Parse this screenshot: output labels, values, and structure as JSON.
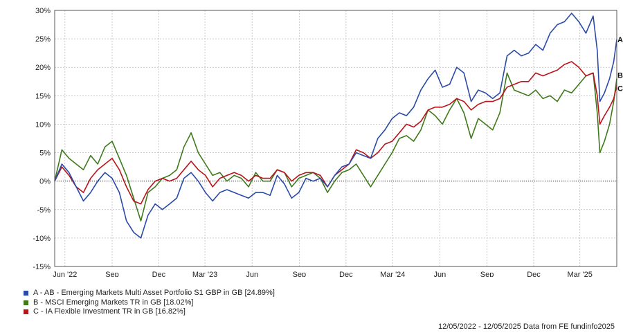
{
  "chart_data": {
    "type": "line",
    "ylim": [
      -15,
      30
    ],
    "y_ticks": [
      -15,
      -10,
      -5,
      0,
      5,
      10,
      15,
      20,
      25,
      30
    ],
    "y_tick_labels": [
      "-15%",
      "-10%",
      "-5%",
      "0%",
      "5%",
      "10%",
      "15%",
      "20%",
      "25%",
      "30%"
    ],
    "x_range": [
      "2022-05-12",
      "2025-05-12"
    ],
    "x_ticks": [
      {
        "date": "2022-06-01",
        "label": "Jun '22"
      },
      {
        "date": "2022-09-01",
        "label": "Sep"
      },
      {
        "date": "2022-12-01",
        "label": "Dec"
      },
      {
        "date": "2023-03-01",
        "label": "Mar '23"
      },
      {
        "date": "2023-06-01",
        "label": "Jun"
      },
      {
        "date": "2023-09-01",
        "label": "Sep"
      },
      {
        "date": "2023-12-01",
        "label": "Dec"
      },
      {
        "date": "2024-03-01",
        "label": "Mar '24"
      },
      {
        "date": "2024-06-01",
        "label": "Jun"
      },
      {
        "date": "2024-09-01",
        "label": "Sep"
      },
      {
        "date": "2024-12-01",
        "label": "Dec"
      },
      {
        "date": "2025-03-01",
        "label": "Mar '25"
      }
    ],
    "grid": true,
    "zero_line": true,
    "legend_position": "bottom-left",
    "series": [
      {
        "name": "A - AB - Emerging Markets Multi Asset Portfolio S1 GBP in GB [24.89%]",
        "end_label": "A",
        "color": "#2a4aa8",
        "points": [
          [
            "2022-05-12",
            0
          ],
          [
            "2022-05-26",
            3
          ],
          [
            "2022-06-09",
            1.5
          ],
          [
            "2022-06-23",
            -1
          ],
          [
            "2022-07-07",
            -3.5
          ],
          [
            "2022-07-21",
            -2
          ],
          [
            "2022-08-04",
            0
          ],
          [
            "2022-08-18",
            1.5
          ],
          [
            "2022-09-01",
            0.5
          ],
          [
            "2022-09-15",
            -2
          ],
          [
            "2022-09-29",
            -7
          ],
          [
            "2022-10-13",
            -9
          ],
          [
            "2022-10-27",
            -10
          ],
          [
            "2022-11-10",
            -6
          ],
          [
            "2022-11-24",
            -4
          ],
          [
            "2022-12-08",
            -5
          ],
          [
            "2022-12-22",
            -4
          ],
          [
            "2023-01-05",
            -3
          ],
          [
            "2023-01-19",
            0.5
          ],
          [
            "2023-02-02",
            1.5
          ],
          [
            "2023-02-16",
            0
          ],
          [
            "2023-03-02",
            -2
          ],
          [
            "2023-03-16",
            -3.5
          ],
          [
            "2023-03-30",
            -2
          ],
          [
            "2023-04-13",
            -1.5
          ],
          [
            "2023-04-27",
            -2
          ],
          [
            "2023-05-11",
            -2.5
          ],
          [
            "2023-05-25",
            -3
          ],
          [
            "2023-06-08",
            -2
          ],
          [
            "2023-06-22",
            -2
          ],
          [
            "2023-07-06",
            -2.5
          ],
          [
            "2023-07-20",
            1
          ],
          [
            "2023-08-03",
            -0.5
          ],
          [
            "2023-08-17",
            -3
          ],
          [
            "2023-08-31",
            -2
          ],
          [
            "2023-09-14",
            0.5
          ],
          [
            "2023-09-28",
            0
          ],
          [
            "2023-10-12",
            0.5
          ],
          [
            "2023-10-26",
            -1
          ],
          [
            "2023-11-09",
            1
          ],
          [
            "2023-11-23",
            2.5
          ],
          [
            "2023-12-07",
            3
          ],
          [
            "2023-12-21",
            5
          ],
          [
            "2024-01-04",
            4.5
          ],
          [
            "2024-01-18",
            4
          ],
          [
            "2024-02-01",
            7.5
          ],
          [
            "2024-02-15",
            9
          ],
          [
            "2024-02-29",
            11
          ],
          [
            "2024-03-14",
            12
          ],
          [
            "2024-03-28",
            11.5
          ],
          [
            "2024-04-11",
            13
          ],
          [
            "2024-04-25",
            16
          ],
          [
            "2024-05-09",
            18
          ],
          [
            "2024-05-23",
            19.5
          ],
          [
            "2024-06-06",
            16.5
          ],
          [
            "2024-06-20",
            17
          ],
          [
            "2024-07-04",
            20
          ],
          [
            "2024-07-18",
            19
          ],
          [
            "2024-08-01",
            14
          ],
          [
            "2024-08-15",
            16
          ],
          [
            "2024-08-29",
            15.5
          ],
          [
            "2024-09-12",
            14.5
          ],
          [
            "2024-09-26",
            15.5
          ],
          [
            "2024-10-10",
            22
          ],
          [
            "2024-10-24",
            23
          ],
          [
            "2024-11-07",
            22
          ],
          [
            "2024-11-21",
            22.5
          ],
          [
            "2024-12-05",
            24
          ],
          [
            "2024-12-19",
            23
          ],
          [
            "2025-01-02",
            26
          ],
          [
            "2025-01-16",
            27.5
          ],
          [
            "2025-01-30",
            28
          ],
          [
            "2025-02-13",
            29.5
          ],
          [
            "2025-02-27",
            28
          ],
          [
            "2025-03-13",
            26
          ],
          [
            "2025-03-27",
            29
          ],
          [
            "2025-04-04",
            23
          ],
          [
            "2025-04-09",
            14
          ],
          [
            "2025-04-18",
            15.5
          ],
          [
            "2025-04-28",
            18
          ],
          [
            "2025-05-06",
            21
          ],
          [
            "2025-05-12",
            24.89
          ]
        ]
      },
      {
        "name": "B - MSCI Emerging Markets TR in GB [18.02%]",
        "end_label": "B",
        "color": "#3e7a1c",
        "points": [
          [
            "2022-05-12",
            0
          ],
          [
            "2022-05-26",
            5.5
          ],
          [
            "2022-06-09",
            4
          ],
          [
            "2022-06-23",
            3
          ],
          [
            "2022-07-07",
            2
          ],
          [
            "2022-07-21",
            4.5
          ],
          [
            "2022-08-04",
            3
          ],
          [
            "2022-08-18",
            6
          ],
          [
            "2022-09-01",
            7
          ],
          [
            "2022-09-15",
            4
          ],
          [
            "2022-09-29",
            1
          ],
          [
            "2022-10-13",
            -3
          ],
          [
            "2022-10-27",
            -7
          ],
          [
            "2022-11-10",
            -2
          ],
          [
            "2022-11-24",
            -1
          ],
          [
            "2022-12-08",
            0.5
          ],
          [
            "2022-12-22",
            1
          ],
          [
            "2023-01-05",
            2
          ],
          [
            "2023-01-19",
            6
          ],
          [
            "2023-02-02",
            8.5
          ],
          [
            "2023-02-16",
            5
          ],
          [
            "2023-03-02",
            3
          ],
          [
            "2023-03-16",
            1
          ],
          [
            "2023-03-30",
            1.5
          ],
          [
            "2023-04-13",
            0
          ],
          [
            "2023-04-27",
            1
          ],
          [
            "2023-05-11",
            0.5
          ],
          [
            "2023-05-25",
            -1
          ],
          [
            "2023-06-08",
            1.5
          ],
          [
            "2023-06-22",
            0
          ],
          [
            "2023-07-06",
            0
          ],
          [
            "2023-07-20",
            2
          ],
          [
            "2023-08-03",
            1.5
          ],
          [
            "2023-08-17",
            -1
          ],
          [
            "2023-08-31",
            0.5
          ],
          [
            "2023-09-14",
            1
          ],
          [
            "2023-09-28",
            1.5
          ],
          [
            "2023-10-12",
            0.5
          ],
          [
            "2023-10-26",
            -2
          ],
          [
            "2023-11-09",
            0
          ],
          [
            "2023-11-23",
            1.5
          ],
          [
            "2023-12-07",
            2
          ],
          [
            "2023-12-21",
            3
          ],
          [
            "2024-01-04",
            1
          ],
          [
            "2024-01-18",
            -1
          ],
          [
            "2024-02-01",
            1
          ],
          [
            "2024-02-15",
            3
          ],
          [
            "2024-02-29",
            5
          ],
          [
            "2024-03-14",
            7.5
          ],
          [
            "2024-03-28",
            8
          ],
          [
            "2024-04-11",
            7
          ],
          [
            "2024-04-25",
            9
          ],
          [
            "2024-05-09",
            12.5
          ],
          [
            "2024-05-23",
            11.5
          ],
          [
            "2024-06-06",
            10
          ],
          [
            "2024-06-20",
            12.5
          ],
          [
            "2024-07-04",
            14.5
          ],
          [
            "2024-07-18",
            12
          ],
          [
            "2024-08-01",
            7.5
          ],
          [
            "2024-08-15",
            11
          ],
          [
            "2024-08-29",
            10
          ],
          [
            "2024-09-12",
            9
          ],
          [
            "2024-09-26",
            12
          ],
          [
            "2024-10-10",
            19
          ],
          [
            "2024-10-24",
            16
          ],
          [
            "2024-11-07",
            15.5
          ],
          [
            "2024-11-21",
            15
          ],
          [
            "2024-12-05",
            16
          ],
          [
            "2024-12-19",
            14.5
          ],
          [
            "2025-01-02",
            15
          ],
          [
            "2025-01-16",
            14
          ],
          [
            "2025-01-30",
            16
          ],
          [
            "2025-02-13",
            15.5
          ],
          [
            "2025-02-27",
            17
          ],
          [
            "2025-03-13",
            18.5
          ],
          [
            "2025-03-27",
            19
          ],
          [
            "2025-04-04",
            12
          ],
          [
            "2025-04-09",
            5
          ],
          [
            "2025-04-18",
            7
          ],
          [
            "2025-04-28",
            10
          ],
          [
            "2025-05-06",
            14
          ],
          [
            "2025-05-12",
            18.02
          ]
        ]
      },
      {
        "name": "C - IA Flexible Investment TR in GB [16.82%]",
        "end_label": "C",
        "color": "#b8141b",
        "points": [
          [
            "2022-05-12",
            0
          ],
          [
            "2022-05-26",
            2.5
          ],
          [
            "2022-06-09",
            1
          ],
          [
            "2022-06-23",
            -1
          ],
          [
            "2022-07-07",
            -2
          ],
          [
            "2022-07-21",
            0.5
          ],
          [
            "2022-08-04",
            2
          ],
          [
            "2022-08-18",
            3
          ],
          [
            "2022-09-01",
            4
          ],
          [
            "2022-09-15",
            2
          ],
          [
            "2022-09-29",
            -1
          ],
          [
            "2022-10-13",
            -3.5
          ],
          [
            "2022-10-27",
            -4
          ],
          [
            "2022-11-10",
            -1.5
          ],
          [
            "2022-11-24",
            0
          ],
          [
            "2022-12-08",
            0.5
          ],
          [
            "2022-12-22",
            0
          ],
          [
            "2023-01-05",
            0.5
          ],
          [
            "2023-01-19",
            2
          ],
          [
            "2023-02-02",
            3.5
          ],
          [
            "2023-02-16",
            2
          ],
          [
            "2023-03-02",
            1
          ],
          [
            "2023-03-16",
            -1
          ],
          [
            "2023-03-30",
            0.5
          ],
          [
            "2023-04-13",
            1
          ],
          [
            "2023-04-27",
            1.5
          ],
          [
            "2023-05-11",
            1
          ],
          [
            "2023-05-25",
            0
          ],
          [
            "2023-06-08",
            1
          ],
          [
            "2023-06-22",
            0.5
          ],
          [
            "2023-07-06",
            0.5
          ],
          [
            "2023-07-20",
            2
          ],
          [
            "2023-08-03",
            1.5
          ],
          [
            "2023-08-17",
            0
          ],
          [
            "2023-08-31",
            1
          ],
          [
            "2023-09-14",
            1.5
          ],
          [
            "2023-09-28",
            1.5
          ],
          [
            "2023-10-12",
            1
          ],
          [
            "2023-10-26",
            -1
          ],
          [
            "2023-11-09",
            1
          ],
          [
            "2023-11-23",
            2
          ],
          [
            "2023-12-07",
            3
          ],
          [
            "2023-12-21",
            5.5
          ],
          [
            "2024-01-04",
            5
          ],
          [
            "2024-01-18",
            4
          ],
          [
            "2024-02-01",
            5
          ],
          [
            "2024-02-15",
            6.5
          ],
          [
            "2024-02-29",
            7
          ],
          [
            "2024-03-14",
            8.5
          ],
          [
            "2024-03-28",
            10
          ],
          [
            "2024-04-11",
            9.5
          ],
          [
            "2024-04-25",
            10.5
          ],
          [
            "2024-05-09",
            12.5
          ],
          [
            "2024-05-23",
            13
          ],
          [
            "2024-06-06",
            13
          ],
          [
            "2024-06-20",
            13.5
          ],
          [
            "2024-07-04",
            14.5
          ],
          [
            "2024-07-18",
            14
          ],
          [
            "2024-08-01",
            12.5
          ],
          [
            "2024-08-15",
            13.5
          ],
          [
            "2024-08-29",
            14
          ],
          [
            "2024-09-12",
            14
          ],
          [
            "2024-09-26",
            14.5
          ],
          [
            "2024-10-10",
            16.5
          ],
          [
            "2024-10-24",
            17
          ],
          [
            "2024-11-07",
            17.5
          ],
          [
            "2024-11-21",
            17.5
          ],
          [
            "2024-12-05",
            19
          ],
          [
            "2024-12-19",
            18.5
          ],
          [
            "2025-01-02",
            19
          ],
          [
            "2025-01-16",
            19.5
          ],
          [
            "2025-01-30",
            20.5
          ],
          [
            "2025-02-13",
            21
          ],
          [
            "2025-02-27",
            20
          ],
          [
            "2025-03-13",
            18.5
          ],
          [
            "2025-03-27",
            19
          ],
          [
            "2025-04-04",
            15
          ],
          [
            "2025-04-09",
            10
          ],
          [
            "2025-04-18",
            11.5
          ],
          [
            "2025-04-28",
            13
          ],
          [
            "2025-05-06",
            14.5
          ],
          [
            "2025-05-12",
            16.82
          ]
        ]
      }
    ]
  },
  "footer": {
    "text": "12/05/2022 - 12/05/2025 Data from FE fundinfo2025"
  }
}
